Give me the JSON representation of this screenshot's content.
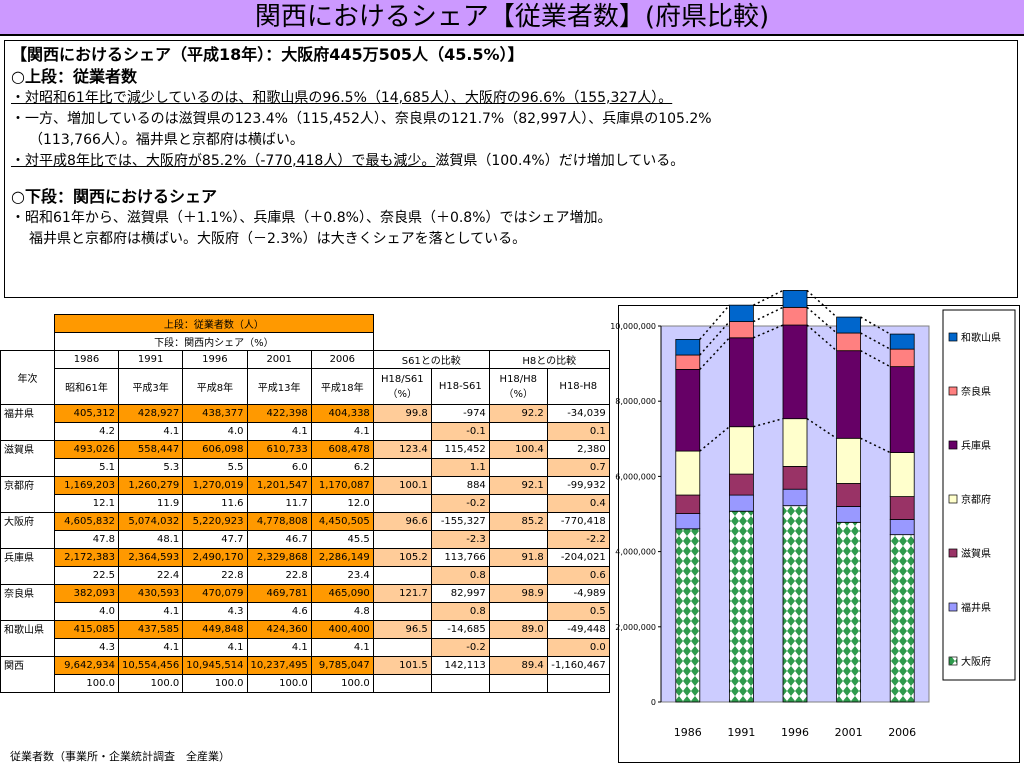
{
  "page": {
    "title": "関西におけるシェア【従業者数】(府県比較)"
  },
  "summary": {
    "headline": "【関西におけるシェア（平成18年）：大阪府445万505人（45.5%）】",
    "upper_title": "○上段：従業者数",
    "upper_lines": [
      "・対昭和61年比で減少しているのは、和歌山県の96.5%（14,685人）、大阪府の96.6%（155,327人）。",
      "・一方、増加しているのは滋賀県の123.4%（115,452人）、奈良県の121.7%（82,997人）、兵庫県の105.2%",
      "（113,766人）。福井県と京都府は横ばい。",
      "・対平成8年比では、大阪府が85.2%（-770,418人）で最も減少。",
      "滋賀県（100.4%）だけ増加している。"
    ],
    "lower_title": "○下段：関西におけるシェア",
    "lower_lines": [
      "・昭和61年から、滋賀県（＋1.1%）、兵庫県（＋0.8%）、奈良県（＋0.8%）ではシェア増加。",
      "福井県と京都府は横ばい。大阪府（－2.3%）は大きくシェアを落としている。"
    ]
  },
  "table": {
    "header_upper": "上段：従業者数（人）",
    "header_lower": "下段：関西内シェア（%）",
    "year_label": "年次",
    "years": [
      "1986",
      "1991",
      "1996",
      "2001",
      "2006"
    ],
    "eras": [
      "昭和61年",
      "平成3年",
      "平成8年",
      "平成13年",
      "平成18年"
    ],
    "s61_header": "S61との比較",
    "h8_header": "H8との比較",
    "col_s61_pct": "H18/S61（%）",
    "col_s61_diff": "H18-S61",
    "col_h8_pct": "H18/H8（%）",
    "col_h8_diff": "H18-H8",
    "rows": [
      {
        "name": "福井県",
        "counts": [
          "405,312",
          "428,927",
          "438,377",
          "422,398",
          "404,338"
        ],
        "shares": [
          "4.2",
          "4.1",
          "4.0",
          "4.1",
          "4.1"
        ],
        "s61_pct": "99.8",
        "s61_diff": "-974",
        "s61_share_diff": "-0.1",
        "h8_pct": "92.2",
        "h8_diff": "-34,039",
        "h8_share_diff": "0.1"
      },
      {
        "name": "滋賀県",
        "counts": [
          "493,026",
          "558,447",
          "606,098",
          "610,733",
          "608,478"
        ],
        "shares": [
          "5.1",
          "5.3",
          "5.5",
          "6.0",
          "6.2"
        ],
        "s61_pct": "123.4",
        "s61_diff": "115,452",
        "s61_share_diff": "1.1",
        "h8_pct": "100.4",
        "h8_diff": "2,380",
        "h8_share_diff": "0.7"
      },
      {
        "name": "京都府",
        "counts": [
          "1,169,203",
          "1,260,279",
          "1,270,019",
          "1,201,547",
          "1,170,087"
        ],
        "shares": [
          "12.1",
          "11.9",
          "11.6",
          "11.7",
          "12.0"
        ],
        "s61_pct": "100.1",
        "s61_diff": "884",
        "s61_share_diff": "-0.2",
        "h8_pct": "92.1",
        "h8_diff": "-99,932",
        "h8_share_diff": "0.4"
      },
      {
        "name": "大阪府",
        "counts": [
          "4,605,832",
          "5,074,032",
          "5,220,923",
          "4,778,808",
          "4,450,505"
        ],
        "shares": [
          "47.8",
          "48.1",
          "47.7",
          "46.7",
          "45.5"
        ],
        "s61_pct": "96.6",
        "s61_diff": "-155,327",
        "s61_share_diff": "-2.3",
        "h8_pct": "85.2",
        "h8_diff": "-770,418",
        "h8_share_diff": "-2.2"
      },
      {
        "name": "兵庫県",
        "counts": [
          "2,172,383",
          "2,364,593",
          "2,490,170",
          "2,329,868",
          "2,286,149"
        ],
        "shares": [
          "22.5",
          "22.4",
          "22.8",
          "22.8",
          "23.4"
        ],
        "s61_pct": "105.2",
        "s61_diff": "113,766",
        "s61_share_diff": "0.8",
        "h8_pct": "91.8",
        "h8_diff": "-204,021",
        "h8_share_diff": "0.6"
      },
      {
        "name": "奈良県",
        "counts": [
          "382,093",
          "430,593",
          "470,079",
          "469,781",
          "465,090"
        ],
        "shares": [
          "4.0",
          "4.1",
          "4.3",
          "4.6",
          "4.8"
        ],
        "s61_pct": "121.7",
        "s61_diff": "82,997",
        "s61_share_diff": "0.8",
        "h8_pct": "98.9",
        "h8_diff": "-4,989",
        "h8_share_diff": "0.5"
      },
      {
        "name": "和歌山県",
        "counts": [
          "415,085",
          "437,585",
          "449,848",
          "424,360",
          "400,400"
        ],
        "shares": [
          "4.3",
          "4.1",
          "4.1",
          "4.1",
          "4.1"
        ],
        "s61_pct": "96.5",
        "s61_diff": "-14,685",
        "s61_share_diff": "-0.2",
        "h8_pct": "89.0",
        "h8_diff": "-49,448",
        "h8_share_diff": "0.0"
      },
      {
        "name": "関西",
        "counts": [
          "9,642,934",
          "10,554,456",
          "10,945,514",
          "10,237,495",
          "9,785,047"
        ],
        "shares": [
          "100.0",
          "100.0",
          "100.0",
          "100.0",
          "100.0"
        ],
        "s61_pct": "101.5",
        "s61_diff": "142,113",
        "s61_share_diff": "",
        "h8_pct": "89.4",
        "h8_diff": "-1,160,467",
        "h8_share_diff": ""
      }
    ]
  },
  "footnote": "従業者数（事業所・企業統計調査　全産業）",
  "chart_data": {
    "type": "bar",
    "stacked": true,
    "categories": [
      "1986",
      "1991",
      "1996",
      "2001",
      "2006"
    ],
    "ylim": [
      0,
      10000000
    ],
    "yticks": [
      "0",
      "2,000,000",
      "4,000,000",
      "6,000,000",
      "8,000,000",
      "10,000,000"
    ],
    "legend_position": "right",
    "series": [
      {
        "name": "大阪府",
        "color": "#66cc99",
        "values": [
          4605832,
          5074032,
          5220923,
          4778808,
          4450505
        ]
      },
      {
        "name": "福井県",
        "color": "#9999ff",
        "values": [
          405312,
          428927,
          438377,
          422398,
          404338
        ]
      },
      {
        "name": "滋賀県",
        "color": "#993366",
        "values": [
          493026,
          558447,
          606098,
          610733,
          608478
        ]
      },
      {
        "name": "京都府",
        "color": "#ffffcc",
        "values": [
          1169203,
          1260279,
          1270019,
          1201547,
          1170087
        ]
      },
      {
        "name": "兵庫県",
        "color": "#660066",
        "values": [
          2172383,
          2364593,
          2490170,
          2329868,
          2286149
        ]
      },
      {
        "name": "奈良県",
        "color": "#ff8080",
        "values": [
          382093,
          430593,
          470079,
          469781,
          465090
        ]
      },
      {
        "name": "和歌山県",
        "color": "#0066cc",
        "values": [
          415085,
          437585,
          449848,
          424360,
          400400
        ]
      }
    ],
    "legend_order": [
      "和歌山県",
      "奈良県",
      "兵庫県",
      "京都府",
      "滋賀県",
      "福井県",
      "大阪府"
    ]
  }
}
